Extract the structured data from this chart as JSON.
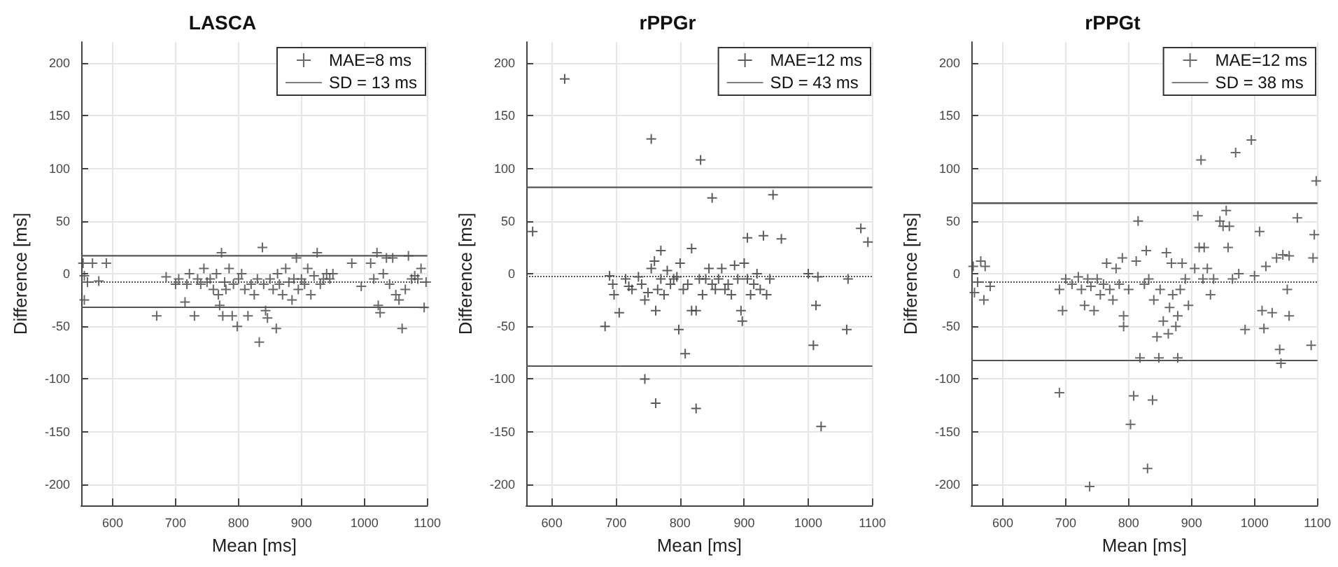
{
  "chart_data": [
    {
      "type": "scatter",
      "title": "LASCA",
      "xlabel": "Mean [ms]",
      "ylabel": "Difference [ms]",
      "xlim": [
        550,
        1100
      ],
      "ylim": [
        -220,
        220
      ],
      "xticks": [
        600,
        700,
        800,
        900,
        1000,
        1100
      ],
      "yticks": [
        -200,
        -150,
        -100,
        -50,
        0,
        50,
        100,
        150,
        200
      ],
      "grid": true,
      "legend": "top right",
      "series": [
        {
          "name": "MAE=8 ms",
          "color": "#444444",
          "marker": "cross",
          "x": [
            553,
            555,
            560,
            555,
            568,
            578,
            590,
            670,
            685,
            700,
            705,
            715,
            718,
            722,
            730,
            735,
            740,
            745,
            750,
            755,
            760,
            765,
            768,
            770,
            773,
            775,
            778,
            780,
            785,
            790,
            792,
            798,
            800,
            805,
            810,
            815,
            820,
            825,
            830,
            833,
            838,
            840,
            843,
            846,
            850,
            855,
            860,
            862,
            865,
            870,
            875,
            880,
            885,
            888,
            892,
            895,
            900,
            905,
            910,
            915,
            920,
            925,
            930,
            935,
            940,
            945,
            950,
            980,
            995,
            1010,
            1015,
            1020,
            1022,
            1025,
            1030,
            1035,
            1040,
            1045,
            1050,
            1055,
            1060,
            1065,
            1070,
            1075,
            1080,
            1085,
            1090,
            1095,
            1098
          ],
          "values": [
            10,
            -2,
            -8,
            -25,
            10,
            -7,
            10,
            -40,
            -3,
            -10,
            -5,
            -27,
            -10,
            0,
            -40,
            -5,
            -10,
            5,
            -8,
            -5,
            -15,
            0,
            -20,
            -30,
            20,
            -40,
            -8,
            -15,
            5,
            -40,
            -10,
            -50,
            -5,
            0,
            -15,
            -40,
            -10,
            -20,
            -5,
            -65,
            25,
            -10,
            -35,
            -42,
            -5,
            -15,
            -52,
            0,
            -10,
            -20,
            5,
            -8,
            -25,
            -5,
            15,
            -15,
            -5,
            -10,
            5,
            -20,
            -2,
            20,
            -10,
            -5,
            0,
            -5,
            0,
            10,
            -12,
            10,
            -5,
            20,
            -30,
            -37,
            0,
            15,
            -10,
            15,
            -20,
            -25,
            -52,
            -15,
            17,
            -5,
            -2,
            -5,
            5,
            -32,
            -8
          ]
        },
        {
          "type": "line",
          "name": "SD = 13 ms",
          "color": "#555555",
          "marker": "none",
          "line_style": "solid",
          "x": [
            550,
            1100
          ],
          "values": [
            17,
            17
          ]
        }
      ],
      "ref_lines": [
        {
          "axis": "y",
          "value": -32,
          "line_style": "solid",
          "color": "#555555"
        },
        {
          "axis": "y",
          "value": -7,
          "line_style": "dotted",
          "color": "#555555"
        }
      ]
    },
    {
      "type": "scatter",
      "title": "rPPGr",
      "xlabel": "Mean [ms]",
      "ylabel": "Difference [ms]",
      "xlim": [
        560,
        1100
      ],
      "ylim": [
        -220,
        220
      ],
      "xticks": [
        600,
        700,
        800,
        900,
        1000,
        1100
      ],
      "yticks": [
        -200,
        -150,
        -100,
        -50,
        0,
        50,
        100,
        150,
        200
      ],
      "grid": true,
      "legend": "top right",
      "series": [
        {
          "name": "MAE=12 ms",
          "color": "#333333",
          "marker": "cross",
          "x": [
            570,
            620,
            755,
            832,
            850,
            945,
            1082,
            1093,
            905,
            930,
            958,
            818,
            770,
            690,
            695,
            697,
            705,
            683,
            715,
            720,
            725,
            735,
            740,
            745,
            750,
            755,
            760,
            762,
            765,
            770,
            775,
            780,
            785,
            790,
            795,
            798,
            800,
            805,
            808,
            812,
            818,
            825,
            830,
            835,
            840,
            845,
            850,
            855,
            860,
            865,
            870,
            875,
            880,
            885,
            890,
            895,
            897,
            900,
            905,
            910,
            915,
            920,
            925,
            935,
            940,
            1000,
            1012,
            1015,
            1008,
            1060,
            1062,
            1020,
            745,
            762,
            825
          ],
          "values": [
            40,
            185,
            128,
            108,
            72,
            75,
            43,
            30,
            34,
            36,
            33,
            24,
            22,
            -2,
            -10,
            -20,
            -37,
            -50,
            -5,
            -12,
            -15,
            -3,
            -10,
            -25,
            -18,
            5,
            12,
            -35,
            -15,
            -5,
            -20,
            3,
            -10,
            -5,
            -3,
            -53,
            10,
            -15,
            -76,
            -10,
            -35,
            -35,
            -5,
            -20,
            -5,
            5,
            -10,
            -15,
            -5,
            5,
            -15,
            -10,
            -20,
            8,
            -5,
            -35,
            -45,
            10,
            -5,
            -20,
            -10,
            0,
            -15,
            -20,
            -5,
            0,
            -30,
            -3,
            -68,
            -53,
            -5,
            -145,
            -100,
            -123,
            -128
          ]
        },
        {
          "type": "line",
          "name": "SD = 43 ms",
          "color": "#555555",
          "marker": "none",
          "line_style": "solid",
          "x": [
            560,
            1100
          ],
          "values": [
            82,
            82
          ]
        }
      ],
      "ref_lines": [
        {
          "axis": "y",
          "value": -87,
          "line_style": "solid",
          "color": "#555555"
        },
        {
          "axis": "y",
          "value": -2,
          "line_style": "dotted",
          "color": "#555555"
        }
      ]
    },
    {
      "type": "scatter",
      "title": "rPPGt",
      "xlabel": "Mean [ms]",
      "ylabel": "Difference [ms]",
      "xlim": [
        550,
        1100
      ],
      "ylim": [
        -220,
        220
      ],
      "xticks": [
        600,
        700,
        800,
        900,
        1000,
        1100
      ],
      "yticks": [
        -200,
        -150,
        -100,
        -50,
        0,
        50,
        100,
        150,
        200
      ],
      "grid": true,
      "legend": "top right",
      "series": [
        {
          "name": "MAE=12 ms",
          "color": "#444444",
          "marker": "cross",
          "x": [
            553,
            555,
            560,
            565,
            570,
            572,
            580,
            690,
            695,
            690,
            700,
            710,
            720,
            725,
            730,
            735,
            738,
            740,
            745,
            750,
            755,
            760,
            765,
            770,
            775,
            780,
            785,
            790,
            792,
            792,
            800,
            803,
            808,
            812,
            815,
            818,
            825,
            828,
            830,
            832,
            838,
            840,
            845,
            848,
            850,
            855,
            860,
            863,
            865,
            868,
            870,
            875,
            878,
            878,
            882,
            885,
            890,
            895,
            905,
            910,
            912,
            915,
            918,
            920,
            925,
            930,
            935,
            945,
            950,
            955,
            958,
            960,
            965,
            970,
            975,
            985,
            995,
            1000,
            1008,
            1012,
            1015,
            1018,
            1028,
            1035,
            1040,
            1042,
            1045,
            1052,
            1055,
            1055,
            1068,
            1090,
            1093,
            1095,
            1098
          ],
          "values": [
            7,
            -18,
            -8,
            12,
            -25,
            7,
            -12,
            -113,
            -35,
            -15,
            -5,
            -10,
            -3,
            -15,
            -30,
            -5,
            -202,
            -12,
            -35,
            -5,
            -20,
            -10,
            10,
            -15,
            -25,
            5,
            -10,
            15,
            -40,
            -50,
            -15,
            -143,
            -116,
            12,
            50,
            -80,
            -10,
            22,
            -185,
            -5,
            -120,
            -25,
            -60,
            -80,
            -15,
            -45,
            20,
            -57,
            -32,
            10,
            -20,
            -50,
            -40,
            -80,
            -15,
            10,
            -5,
            -30,
            5,
            55,
            25,
            108,
            -5,
            25,
            5,
            -20,
            -5,
            50,
            45,
            60,
            25,
            45,
            -5,
            115,
            0,
            -53,
            127,
            -2,
            40,
            -35,
            -52,
            7,
            -37,
            15,
            -72,
            -85,
            18,
            -15,
            -40,
            17,
            53,
            -68,
            15,
            37,
            88
          ]
        },
        {
          "type": "line",
          "name": "SD = 38 ms",
          "color": "#555555",
          "marker": "none",
          "line_style": "solid",
          "x": [
            550,
            1100
          ],
          "values": [
            67,
            67
          ]
        }
      ],
      "ref_lines": [
        {
          "axis": "y",
          "value": -82,
          "line_style": "solid",
          "color": "#555555"
        },
        {
          "axis": "y",
          "value": -7,
          "line_style": "dotted",
          "color": "#555555"
        }
      ]
    }
  ]
}
